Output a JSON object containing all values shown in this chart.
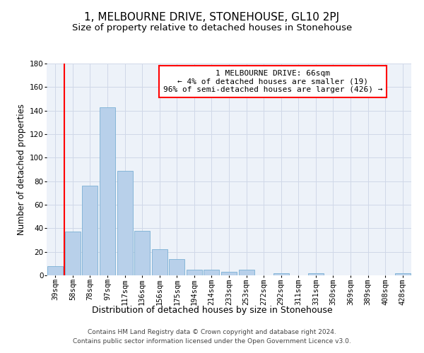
{
  "title": "1, MELBOURNE DRIVE, STONEHOUSE, GL10 2PJ",
  "subtitle": "Size of property relative to detached houses in Stonehouse",
  "xlabel": "Distribution of detached houses by size in Stonehouse",
  "ylabel": "Number of detached properties",
  "categories": [
    "39sqm",
    "58sqm",
    "78sqm",
    "97sqm",
    "117sqm",
    "136sqm",
    "156sqm",
    "175sqm",
    "194sqm",
    "214sqm",
    "233sqm",
    "253sqm",
    "272sqm",
    "292sqm",
    "311sqm",
    "331sqm",
    "350sqm",
    "369sqm",
    "389sqm",
    "408sqm",
    "428sqm"
  ],
  "values": [
    8,
    37,
    76,
    143,
    89,
    38,
    22,
    14,
    5,
    5,
    3,
    5,
    0,
    2,
    0,
    2,
    0,
    0,
    0,
    0,
    2
  ],
  "bar_color": "#b8d0ea",
  "bar_edge_color": "#7aafd4",
  "vline_x": 0.5,
  "vline_color": "red",
  "annotation_line1": "1 MELBOURNE DRIVE: 66sqm",
  "annotation_line2": "← 4% of detached houses are smaller (19)",
  "annotation_line3": "96% of semi-detached houses are larger (426) →",
  "annotation_box_facecolor": "white",
  "annotation_box_edgecolor": "red",
  "ylim": [
    0,
    180
  ],
  "yticks": [
    0,
    20,
    40,
    60,
    80,
    100,
    120,
    140,
    160,
    180
  ],
  "grid_color": "#d0d8e8",
  "bg_color": "#edf2f9",
  "footer_line1": "Contains HM Land Registry data © Crown copyright and database right 2024.",
  "footer_line2": "Contains public sector information licensed under the Open Government Licence v3.0.",
  "title_fontsize": 11,
  "subtitle_fontsize": 9.5,
  "ylabel_fontsize": 8.5,
  "xlabel_fontsize": 9,
  "tick_fontsize": 7.5,
  "annotation_fontsize": 8,
  "footer_fontsize": 6.5
}
